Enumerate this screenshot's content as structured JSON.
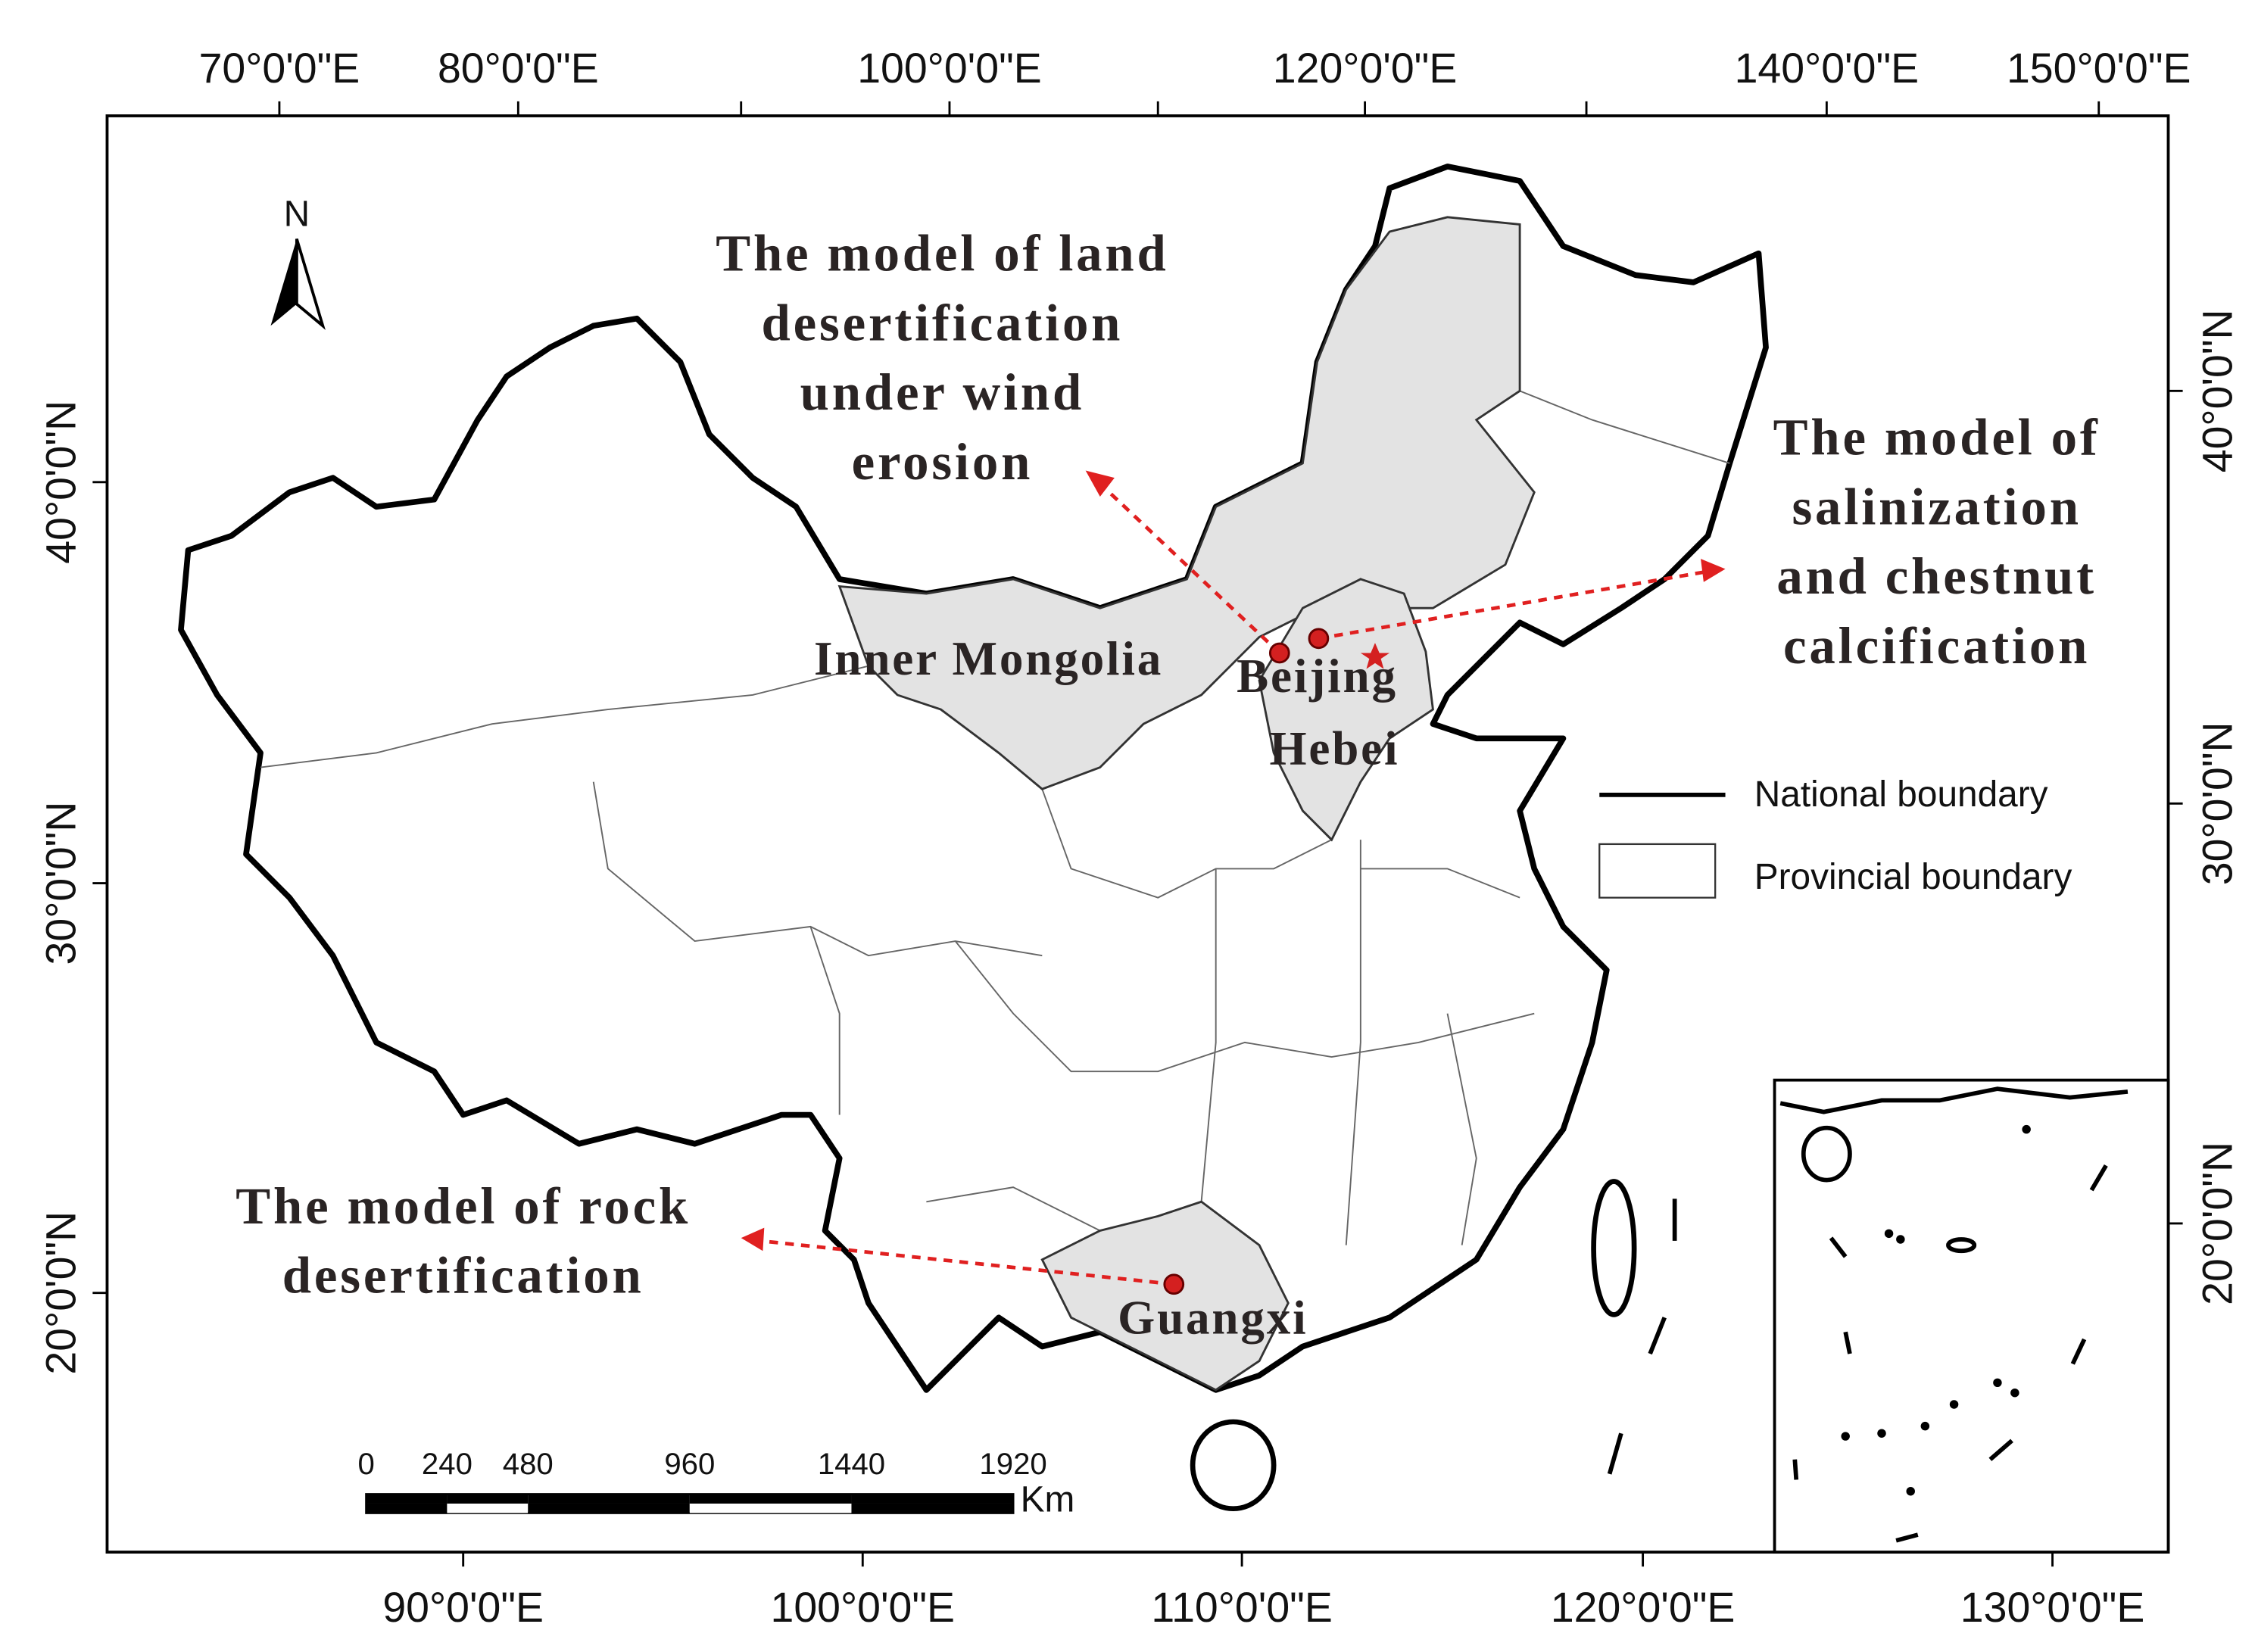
{
  "graticule": {
    "top": [
      "70°0'0\"E",
      "80°0'0\"E",
      "100°0'0\"E",
      "120°0'0\"E",
      "140°0'0\"E",
      "150°0'0\"E"
    ],
    "bottom": [
      "90°0'0\"E",
      "100°0'0\"E",
      "110°0'0\"E",
      "120°0'0\"E",
      "130°0'0\"E"
    ],
    "left": [
      "40°0'0\"N",
      "30°0'0\"N",
      "20°0'0\"N"
    ],
    "right": [
      "40°0'0\"N",
      "30°0'0\"N",
      "20°0'0\"N"
    ]
  },
  "north_arrow": "N",
  "annotations": [
    [
      "The model of land",
      "desertification",
      "under wind",
      "erosion"
    ],
    [
      "The model of",
      "salinization",
      "and chestnut",
      "calcification"
    ],
    [
      "The model of rock",
      "desertification"
    ]
  ],
  "regions": [
    "Inner Mongolia",
    "Beijing",
    "Hebei",
    "Guangxi"
  ],
  "legend": [
    "National boundary",
    "Provincial boundary"
  ],
  "scale_bar": {
    "ticks": [
      0,
      240,
      480,
      960,
      1440,
      1920
    ],
    "unit": "Km"
  }
}
